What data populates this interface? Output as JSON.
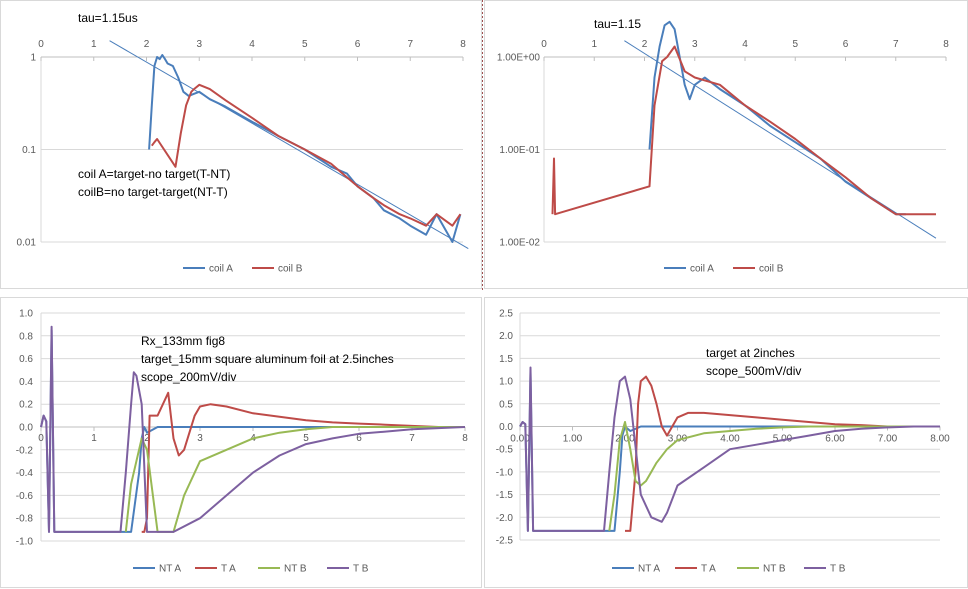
{
  "chart_data": [
    {
      "type": "line",
      "scale": "log",
      "ylim": [
        0.01,
        3
      ],
      "xlim": [
        0,
        8
      ],
      "x_ticks": [
        0,
        1,
        2,
        3,
        4,
        5,
        6,
        7,
        8
      ],
      "x_tick_labels": [
        "0",
        "1",
        "2",
        "3",
        "4",
        "5",
        "6",
        "7",
        "8"
      ],
      "y_ticks": [
        1,
        0.1,
        0.01
      ],
      "y_tick_labels": [
        "1",
        "0.1",
        "0.01"
      ],
      "annotations": [
        "tau=1.15us",
        "coil A=target-no target(T-NT)",
        "coilB=no target-target(NT-T)"
      ],
      "fit_line": {
        "x": [
          1.3,
          8.1
        ],
        "y": [
          1.5,
          0.0085
        ]
      },
      "series": [
        {
          "name": "coil  A",
          "color": "#4a7ebb",
          "x": [
            2.05,
            2.1,
            2.15,
            2.2,
            2.25,
            2.3,
            2.35,
            2.4,
            2.5,
            2.6,
            2.7,
            2.8,
            2.9,
            3.0,
            3.2,
            3.5,
            4.0,
            4.5,
            5.0,
            5.5,
            5.8,
            6.0,
            6.3,
            6.5,
            6.8,
            7.0,
            7.3,
            7.5,
            7.8,
            7.95
          ],
          "y": [
            0.1,
            0.3,
            0.8,
            1.0,
            0.95,
            1.05,
            0.95,
            0.85,
            0.8,
            0.6,
            0.42,
            0.38,
            0.4,
            0.42,
            0.35,
            0.29,
            0.2,
            0.14,
            0.1,
            0.065,
            0.055,
            0.04,
            0.03,
            0.022,
            0.018,
            0.015,
            0.012,
            0.02,
            0.01,
            0.02
          ]
        },
        {
          "name": "coil B",
          "color": "#be4b48",
          "x": [
            2.1,
            2.15,
            2.2,
            2.55,
            2.65,
            2.75,
            2.85,
            2.9,
            3.0,
            3.2,
            3.5,
            4.0,
            4.5,
            5.0,
            5.5,
            5.8,
            6.0,
            6.3,
            6.5,
            6.8,
            7.0,
            7.3,
            7.5,
            7.8,
            7.95
          ],
          "y": [
            0.11,
            0.12,
            0.13,
            0.065,
            0.15,
            0.3,
            0.42,
            0.45,
            0.5,
            0.45,
            0.34,
            0.22,
            0.14,
            0.1,
            0.07,
            0.05,
            0.04,
            0.03,
            0.025,
            0.02,
            0.018,
            0.015,
            0.02,
            0.015,
            0.02
          ]
        }
      ],
      "legend": "bottom"
    },
    {
      "type": "line",
      "scale": "log",
      "ylim": [
        0.01,
        3
      ],
      "xlim": [
        0,
        8
      ],
      "x_ticks": [
        0,
        1,
        2,
        3,
        4,
        5,
        6,
        7,
        8
      ],
      "x_tick_labels": [
        "0",
        "1",
        "2",
        "3",
        "4",
        "5",
        "6",
        "7",
        "8"
      ],
      "y_ticks": [
        1,
        0.1,
        0.01
      ],
      "y_tick_labels": [
        "1.00E+00",
        "1.00E-01",
        "1.00E-02"
      ],
      "annotations": [
        "tau=1.15"
      ],
      "fit_line": {
        "x": [
          1.6,
          7.8
        ],
        "y": [
          1.5,
          0.011
        ]
      },
      "series": [
        {
          "name": "coil  A",
          "color": "#4a7ebb",
          "x": [
            2.1,
            2.2,
            2.3,
            2.4,
            2.5,
            2.6,
            2.7,
            2.8,
            2.9,
            3.0,
            3.2,
            3.5,
            4.0,
            4.5,
            5.0,
            5.5,
            6.0,
            6.5,
            7.0,
            7.2
          ],
          "y": [
            0.1,
            0.6,
            1.3,
            2.2,
            2.4,
            2.0,
            1.0,
            0.5,
            0.35,
            0.5,
            0.6,
            0.45,
            0.3,
            0.18,
            0.12,
            0.08,
            0.045,
            0.03,
            0.02,
            0.02
          ]
        },
        {
          "name": "coil B",
          "color": "#be4b48",
          "x": [
            0.17,
            0.2,
            0.22,
            2.1,
            2.2,
            2.35,
            2.45,
            2.6,
            2.8,
            3.0,
            3.5,
            4.0,
            4.5,
            5.0,
            5.5,
            6.0,
            6.5,
            7.0,
            7.5,
            7.8
          ],
          "y": [
            0.02,
            0.08,
            0.02,
            0.04,
            0.3,
            0.9,
            1.0,
            1.3,
            0.7,
            0.6,
            0.5,
            0.3,
            0.2,
            0.13,
            0.08,
            0.05,
            0.03,
            0.02,
            0.02,
            0.02
          ]
        }
      ],
      "legend": "bottom"
    },
    {
      "type": "line",
      "scale": "linear",
      "ylim": [
        -1.0,
        1.0
      ],
      "xlim": [
        0,
        8
      ],
      "x_ticks": [
        0,
        1,
        2,
        3,
        4,
        5,
        6,
        7,
        8
      ],
      "x_tick_labels": [
        "0",
        "1",
        "2",
        "3",
        "4",
        "5",
        "6",
        "7",
        "8"
      ],
      "y_ticks": [
        1.0,
        0.8,
        0.6,
        0.4,
        0.2,
        0.0,
        -0.2,
        -0.4,
        -0.6,
        -0.8,
        -1.0
      ],
      "y_tick_labels": [
        "1.0",
        "0.8",
        "0.6",
        "0.4",
        "0.2",
        "0.0",
        "-0.2",
        "-0.4",
        "-0.6",
        "-0.8",
        "-1.0"
      ],
      "annotations": [
        "Rx_133mm fig8",
        "target_15mm square aluminum foil at 2.5inches",
        "scope_200mV/div"
      ],
      "series": [
        {
          "name": "NT A",
          "color": "#4a7ebb",
          "x": [
            0,
            0.05,
            0.1,
            0.15,
            0.2,
            0.25,
            1.5,
            1.7,
            1.85,
            1.9,
            1.95,
            2.0,
            2.2,
            2.5,
            3,
            4,
            5,
            6,
            7,
            8
          ],
          "y": [
            0,
            0.1,
            0.05,
            -0.92,
            0.85,
            -0.92,
            -0.92,
            -0.92,
            -0.4,
            -0.1,
            0.0,
            -0.05,
            0.0,
            0.0,
            0.0,
            0.0,
            0.0,
            0.0,
            0.0,
            0.0
          ]
        },
        {
          "name": "T A",
          "color": "#be4b48",
          "x": [
            1.9,
            1.95,
            2.0,
            2.05,
            2.2,
            2.3,
            2.4,
            2.5,
            2.6,
            2.7,
            2.8,
            2.9,
            3.0,
            3.2,
            3.5,
            4.0,
            4.5,
            5.0,
            5.5,
            6.0,
            6.5,
            7.0,
            7.5,
            8.0
          ],
          "y": [
            -0.92,
            -0.92,
            -0.8,
            0.1,
            0.1,
            0.2,
            0.3,
            -0.1,
            -0.25,
            -0.2,
            -0.05,
            0.1,
            0.18,
            0.2,
            0.18,
            0.12,
            0.09,
            0.06,
            0.04,
            0.03,
            0.02,
            0.01,
            0.0,
            0.0
          ]
        },
        {
          "name": "NT B",
          "color": "#98b954",
          "x": [
            1.6,
            1.7,
            1.8,
            1.9,
            2.0,
            2.2,
            2.5,
            2.7,
            2.8,
            3.0,
            3.5,
            4.0,
            4.5,
            5.0,
            5.5,
            6.0,
            7.0,
            8.0
          ],
          "y": [
            -0.92,
            -0.5,
            -0.3,
            -0.1,
            -0.2,
            -0.92,
            -0.92,
            -0.6,
            -0.5,
            -0.3,
            -0.2,
            -0.1,
            -0.05,
            -0.02,
            0.0,
            0.0,
            0.0,
            0.0
          ]
        },
        {
          "name": "T B",
          "color": "#7d60a0",
          "x": [
            0,
            0.05,
            0.1,
            0.15,
            0.2,
            0.25,
            1.5,
            1.6,
            1.7,
            1.75,
            1.8,
            1.9,
            2.0,
            2.5,
            3.0,
            3.5,
            4.0,
            4.5,
            5.0,
            5.5,
            6.0,
            6.5,
            7.0,
            7.5,
            8.0
          ],
          "y": [
            0,
            0.1,
            0.05,
            -0.92,
            0.88,
            -0.92,
            -0.92,
            -0.4,
            0.2,
            0.48,
            0.45,
            0.2,
            -0.92,
            -0.92,
            -0.8,
            -0.6,
            -0.4,
            -0.25,
            -0.15,
            -0.1,
            -0.06,
            -0.04,
            -0.02,
            -0.01,
            0.0
          ]
        }
      ],
      "legend": "bottom"
    },
    {
      "type": "line",
      "scale": "linear",
      "ylim": [
        -2.5,
        2.5
      ],
      "xlim": [
        0,
        8
      ],
      "x_ticks": [
        0,
        1,
        2,
        3,
        4,
        5,
        6,
        7,
        8
      ],
      "x_tick_labels": [
        "0.00",
        "1.00",
        "2.00",
        "3.00",
        "4.00",
        "5.00",
        "6.00",
        "7.00",
        "8.00"
      ],
      "y_ticks": [
        2.5,
        2.0,
        1.5,
        1.0,
        0.5,
        0.0,
        -0.5,
        -1.0,
        -1.5,
        -2.0,
        -2.5
      ],
      "y_tick_labels": [
        "2.5",
        "2.0",
        "1.5",
        "1.0",
        "0.5",
        "0.0",
        "-0.5",
        "-1.0",
        "-1.5",
        "-2.0",
        "-2.5"
      ],
      "annotations": [
        "target at 2inches",
        "scope_500mV/div"
      ],
      "series": [
        {
          "name": "NT A",
          "color": "#4a7ebb",
          "x": [
            0,
            0.05,
            0.1,
            0.15,
            0.2,
            0.25,
            1.6,
            1.8,
            1.9,
            1.95,
            2.0,
            2.1,
            2.3,
            3,
            4,
            5,
            6,
            7,
            8
          ],
          "y": [
            0,
            0.1,
            0.05,
            -2.3,
            1.2,
            -2.3,
            -2.3,
            -2.3,
            -1.0,
            -0.2,
            0.0,
            -0.1,
            0.0,
            0.0,
            0.0,
            0.0,
            0.0,
            0.0,
            0.0
          ]
        },
        {
          "name": "T A",
          "color": "#be4b48",
          "x": [
            2.0,
            2.1,
            2.2,
            2.25,
            2.3,
            2.4,
            2.5,
            2.6,
            2.7,
            2.8,
            3.0,
            3.2,
            3.5,
            4.0,
            4.5,
            5.0,
            5.5,
            6.0,
            6.5,
            7.0,
            7.5,
            8.0
          ],
          "y": [
            -2.3,
            -2.3,
            -1.0,
            0.5,
            1.0,
            1.1,
            0.9,
            0.5,
            0.0,
            -0.2,
            0.2,
            0.3,
            0.3,
            0.25,
            0.2,
            0.15,
            0.1,
            0.05,
            0.03,
            0.0,
            0.0,
            0.0
          ]
        },
        {
          "name": "NT B",
          "color": "#98b954",
          "x": [
            1.7,
            1.8,
            1.9,
            2.0,
            2.1,
            2.2,
            2.3,
            2.4,
            2.5,
            2.6,
            2.8,
            3.0,
            3.5,
            4.0,
            4.5,
            5.0,
            5.5,
            6.0,
            7.0,
            8.0
          ],
          "y": [
            -2.3,
            -1.5,
            -0.3,
            0.1,
            -0.5,
            -1.2,
            -1.3,
            -1.2,
            -1.0,
            -0.8,
            -0.5,
            -0.3,
            -0.15,
            -0.1,
            -0.05,
            -0.02,
            0.0,
            0.0,
            0.0,
            0.0
          ]
        },
        {
          "name": "T B",
          "color": "#7d60a0",
          "x": [
            0,
            0.05,
            0.1,
            0.15,
            0.2,
            0.25,
            1.6,
            1.7,
            1.8,
            1.9,
            2.0,
            2.1,
            2.3,
            2.5,
            2.7,
            2.8,
            3.0,
            3.5,
            4.0,
            4.5,
            5.0,
            5.5,
            6.0,
            6.5,
            7.0,
            7.5,
            8.0
          ],
          "y": [
            0,
            0.1,
            0.05,
            -2.3,
            1.3,
            -2.3,
            -2.3,
            -1.0,
            0.2,
            1.0,
            1.1,
            0.6,
            -1.5,
            -2.0,
            -2.1,
            -1.9,
            -1.3,
            -0.9,
            -0.5,
            -0.4,
            -0.3,
            -0.2,
            -0.1,
            -0.05,
            -0.02,
            0.0,
            0.0
          ]
        }
      ],
      "legend": "bottom"
    }
  ]
}
